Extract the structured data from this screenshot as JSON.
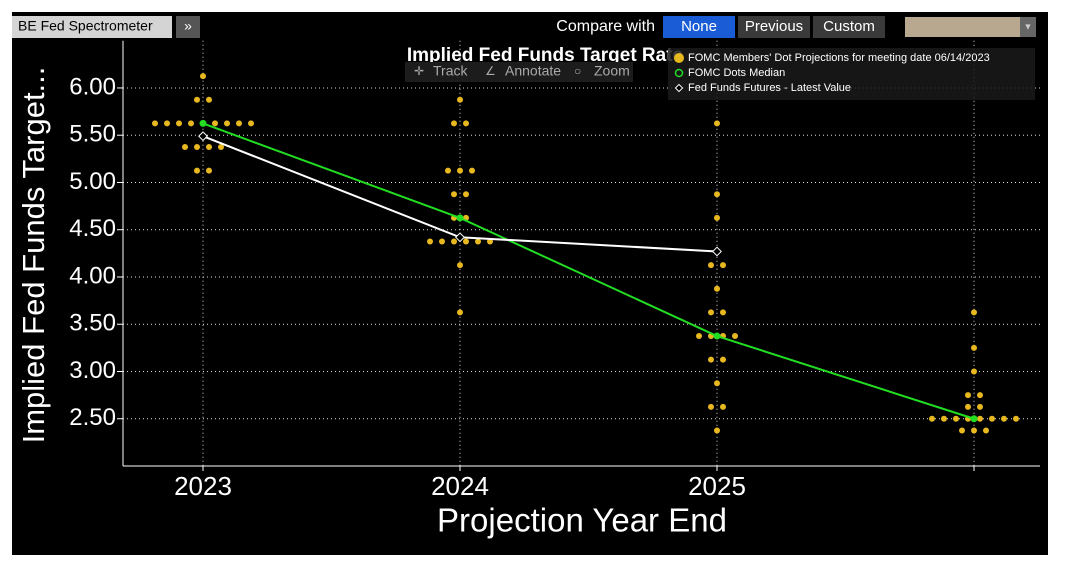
{
  "toolbar": {
    "app": "BE Fed Spectrometer",
    "compare_label": "Compare with",
    "options": [
      "None",
      "Previous",
      "Custom"
    ],
    "tools": [
      "Track",
      "Annotate",
      "Zoom"
    ]
  },
  "chart_data": {
    "type": "scatter",
    "title": "Implied Fed Funds Target Rate",
    "ylabel": "Implied Fed Funds Target...",
    "xlabel": "Projection Year End",
    "categories": [
      "2023",
      "2024",
      "2025",
      null
    ],
    "ylim": [
      2.0,
      6.5
    ],
    "yticks": [
      {
        "value": 2.5,
        "label": "2.50"
      },
      {
        "value": 3.0,
        "label": "3.00"
      },
      {
        "value": 3.5,
        "label": "3.50"
      },
      {
        "value": 4.0,
        "label": "4.00"
      },
      {
        "value": 4.5,
        "label": "4.50"
      },
      {
        "value": 5.0,
        "label": "5.00"
      },
      {
        "value": 5.5,
        "label": "5.50"
      },
      {
        "value": 6.0,
        "label": "6.00"
      }
    ],
    "grid": true,
    "legend": "top-right",
    "series": [
      {
        "name": "FOMC Members' Dot Projections for meeting date 06/14/2023",
        "color": "#e8b820",
        "kind": "dots",
        "values": [
          [
            6.125,
            5.875,
            5.875,
            5.625,
            5.625,
            5.625,
            5.625,
            5.625,
            5.625,
            5.625,
            5.625,
            5.625,
            5.375,
            5.375,
            5.375,
            5.375,
            5.125,
            5.125
          ],
          [
            5.875,
            5.625,
            5.625,
            5.125,
            5.125,
            5.125,
            4.875,
            4.875,
            4.625,
            4.625,
            4.375,
            4.375,
            4.375,
            4.375,
            4.375,
            4.375,
            4.125,
            3.625
          ],
          [
            5.625,
            4.875,
            4.625,
            4.125,
            4.125,
            3.875,
            3.625,
            3.625,
            3.375,
            3.375,
            3.375,
            3.375,
            3.125,
            3.125,
            2.875,
            2.625,
            2.625,
            2.375
          ],
          [
            3.625,
            3.25,
            3.0,
            2.75,
            2.75,
            2.625,
            2.625,
            2.5,
            2.5,
            2.5,
            2.5,
            2.5,
            2.5,
            2.5,
            2.5,
            2.375,
            2.375,
            2.375
          ]
        ]
      },
      {
        "name": "FOMC Dots Median",
        "color": "#22dd22",
        "kind": "line",
        "values": [
          5.625,
          4.625,
          3.375,
          2.5
        ]
      },
      {
        "name": "Fed Funds Futures - Latest Value",
        "color": "#ffffff",
        "kind": "line",
        "values": [
          5.49,
          4.42,
          4.27,
          null
        ]
      }
    ]
  }
}
